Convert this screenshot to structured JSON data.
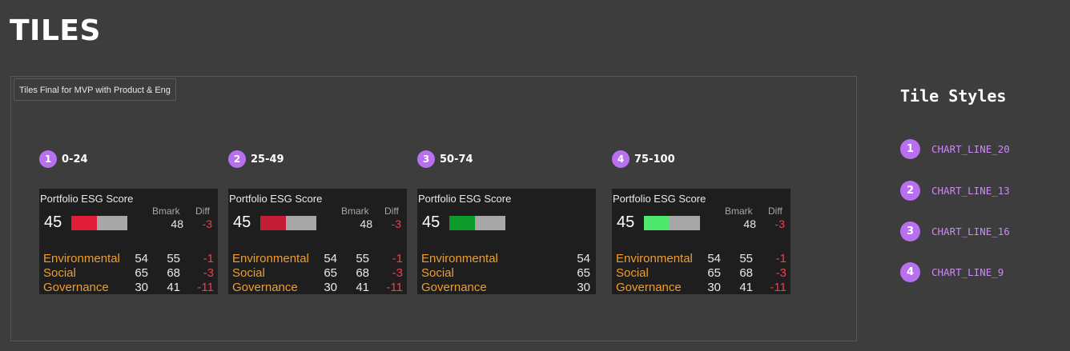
{
  "page_title": "TILES",
  "frame_label": "Tiles Final for MVP with Product & Eng",
  "variants": [
    {
      "index": "1",
      "range": "0-24",
      "tile": {
        "title": "Portfolio ESG Score",
        "bmark_header": "Bmark",
        "diff_header": "Diff",
        "score": "45",
        "bar_fill_pct": 45,
        "bar_color": "#e11d3a",
        "bmark": "48",
        "diff": "-3",
        "rows": [
          {
            "name": "Environmental",
            "score": "54",
            "bmark": "55",
            "diff": "-1"
          },
          {
            "name": "Social",
            "score": "65",
            "bmark": "68",
            "diff": "-3"
          },
          {
            "name": "Governance",
            "score": "30",
            "bmark": "41",
            "diff": "-11"
          }
        ]
      }
    },
    {
      "index": "2",
      "range": "25-49",
      "tile": {
        "title": "Portfolio ESG Score",
        "bmark_header": "Bmark",
        "diff_header": "Diff",
        "score": "45",
        "bar_fill_pct": 45,
        "bar_color": "#c41e36",
        "bmark": "48",
        "diff": "-3",
        "rows": [
          {
            "name": "Environmental",
            "score": "54",
            "bmark": "55",
            "diff": "-1"
          },
          {
            "name": "Social",
            "score": "65",
            "bmark": "68",
            "diff": "-3"
          },
          {
            "name": "Governance",
            "score": "30",
            "bmark": "41",
            "diff": "-11"
          }
        ]
      }
    },
    {
      "index": "3",
      "range": "50-74",
      "tile": {
        "title": "Portfolio ESG Score",
        "score": "45",
        "bar_fill_pct": 45,
        "bar_color": "#0c9a2c",
        "rows": [
          {
            "name": "Environmental",
            "score": "54"
          },
          {
            "name": "Social",
            "score": "65"
          },
          {
            "name": "Governance",
            "score": "30"
          }
        ]
      }
    },
    {
      "index": "4",
      "range": "75-100",
      "tile": {
        "title": "Portfolio ESG Score",
        "bmark_header": "Bmark",
        "diff_header": "Diff",
        "score": "45",
        "bar_fill_pct": 45,
        "bar_color": "#4ee86e",
        "bmark": "48",
        "diff": "-3",
        "rows": [
          {
            "name": "Environmental",
            "score": "54",
            "bmark": "55",
            "diff": "-1"
          },
          {
            "name": "Social",
            "score": "65",
            "bmark": "68",
            "diff": "-3"
          },
          {
            "name": "Governance",
            "score": "30",
            "bmark": "41",
            "diff": "-11"
          }
        ]
      }
    }
  ],
  "tile_styles": {
    "title": "Tile Styles",
    "items": [
      {
        "index": "1",
        "name": "CHART_LINE_20"
      },
      {
        "index": "2",
        "name": "CHART_LINE_13"
      },
      {
        "index": "3",
        "name": "CHART_LINE_16"
      },
      {
        "index": "4",
        "name": "CHART_LINE_9"
      }
    ]
  },
  "colors": {
    "background": "#3d3d3d",
    "tile_background": "#1e1e1e",
    "badge": "#b970f0",
    "category_label": "#f19d2d",
    "negative": "#ef3e4e",
    "style_name": "#c98af2"
  }
}
